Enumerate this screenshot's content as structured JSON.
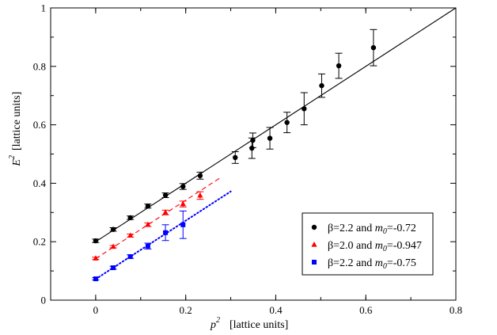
{
  "chart_data": {
    "type": "scatter",
    "title": "",
    "xlabel": {
      "main": "p",
      "sup": "2",
      "units": "[lattice units]"
    },
    "ylabel": {
      "main": "E",
      "sup": "2",
      "units": "[lattice units]"
    },
    "xlim": [
      -0.1,
      0.8
    ],
    "ylim": [
      0,
      1.0
    ],
    "xticks": [
      0,
      0.2,
      0.4,
      0.6,
      0.8
    ],
    "xtick_labels": [
      "0",
      "0.2",
      "0.4",
      "0.6",
      "0.8"
    ],
    "yticks": [
      0,
      0.2,
      0.4,
      0.6,
      0.8,
      1.0
    ],
    "ytick_labels": [
      "0",
      "0.2",
      "0.4",
      "0.6",
      "0.8",
      "1"
    ],
    "legend_position": "bottom-right",
    "series": [
      {
        "name": "β=2.2 and m0=-0.72",
        "label_parts": {
          "pre": "β=2.2 and ",
          "m": "m",
          "sub": "0",
          "post": "=-0.72"
        },
        "color": "#000000",
        "marker": "circle",
        "fit": {
          "style": "solid",
          "x0": 0.0,
          "y0": 0.2,
          "x1": 0.8,
          "y1": 1.0
        },
        "points": [
          {
            "x": 0.0,
            "y": 0.203,
            "err": 0.006
          },
          {
            "x": 0.039,
            "y": 0.242,
            "err": 0.006
          },
          {
            "x": 0.077,
            "y": 0.282,
            "err": 0.006
          },
          {
            "x": 0.116,
            "y": 0.322,
            "err": 0.007
          },
          {
            "x": 0.155,
            "y": 0.359,
            "err": 0.008
          },
          {
            "x": 0.194,
            "y": 0.389,
            "err": 0.01
          },
          {
            "x": 0.232,
            "y": 0.426,
            "err": 0.012
          },
          {
            "x": 0.31,
            "y": 0.488,
            "err": 0.02
          },
          {
            "x": 0.347,
            "y": 0.52,
            "err": 0.035
          },
          {
            "x": 0.349,
            "y": 0.547,
            "err": 0.025
          },
          {
            "x": 0.387,
            "y": 0.554,
            "err": 0.037
          },
          {
            "x": 0.425,
            "y": 0.608,
            "err": 0.035
          },
          {
            "x": 0.463,
            "y": 0.655,
            "err": 0.055
          },
          {
            "x": 0.502,
            "y": 0.734,
            "err": 0.04
          },
          {
            "x": 0.54,
            "y": 0.802,
            "err": 0.043
          },
          {
            "x": 0.617,
            "y": 0.864,
            "err": 0.062
          }
        ]
      },
      {
        "name": "β=2.0 and m0=-0.947",
        "label_parts": {
          "pre": "β=2.0 and ",
          "m": "m",
          "sub": "0",
          "post": "=-0.947"
        },
        "color": "#ff0000",
        "marker": "triangle",
        "fit": {
          "style": "dashed",
          "x0": 0.0,
          "y0": 0.142,
          "x1": 0.28,
          "y1": 0.422
        },
        "points": [
          {
            "x": 0.0,
            "y": 0.143,
            "err": 0.004
          },
          {
            "x": 0.039,
            "y": 0.183,
            "err": 0.004
          },
          {
            "x": 0.077,
            "y": 0.221,
            "err": 0.005
          },
          {
            "x": 0.116,
            "y": 0.258,
            "err": 0.006
          },
          {
            "x": 0.155,
            "y": 0.3,
            "err": 0.008
          },
          {
            "x": 0.194,
            "y": 0.329,
            "err": 0.01
          },
          {
            "x": 0.232,
            "y": 0.358,
            "err": 0.013
          }
        ]
      },
      {
        "name": "β=2.2 and m0=-0.75",
        "label_parts": {
          "pre": "β=2.2 and ",
          "m": "m",
          "sub": "0",
          "post": "=-0.75"
        },
        "color": "#0000ff",
        "marker": "square",
        "fit": {
          "style": "dotted",
          "x0": 0.0,
          "y0": 0.072,
          "x1": 0.3,
          "y1": 0.372
        },
        "points": [
          {
            "x": 0.0,
            "y": 0.073,
            "err": 0.004
          },
          {
            "x": 0.039,
            "y": 0.111,
            "err": 0.005
          },
          {
            "x": 0.077,
            "y": 0.149,
            "err": 0.006
          },
          {
            "x": 0.116,
            "y": 0.185,
            "err": 0.01
          },
          {
            "x": 0.155,
            "y": 0.231,
            "err": 0.027
          },
          {
            "x": 0.194,
            "y": 0.258,
            "err": 0.047
          }
        ]
      }
    ]
  }
}
